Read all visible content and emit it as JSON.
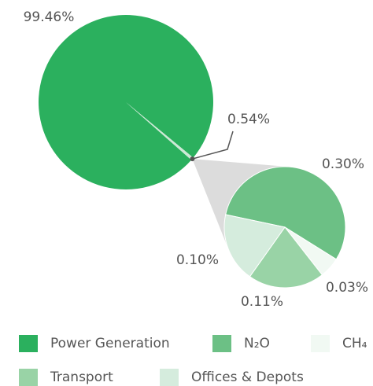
{
  "chart_data": {
    "type": "pie-of-pie",
    "categories": [
      "Power Generation",
      null
    ],
    "values": [
      99.46,
      0.54
    ],
    "value_labels": [
      "99.46%",
      "0.54%"
    ],
    "colors": [
      "#2bb05e",
      "#cde9d6"
    ],
    "sub": {
      "categories": [
        "N₂O",
        "CH₄",
        "Transport",
        "Offices & Depots"
      ],
      "values": [
        0.3,
        0.03,
        0.11,
        0.1
      ],
      "value_labels": [
        "0.30%",
        "0.03%",
        "0.11%",
        "0.10%"
      ],
      "colors": [
        "#6cc085",
        "#f1f9f3",
        "#99d3a6",
        "#d5ecdd"
      ]
    }
  }
}
